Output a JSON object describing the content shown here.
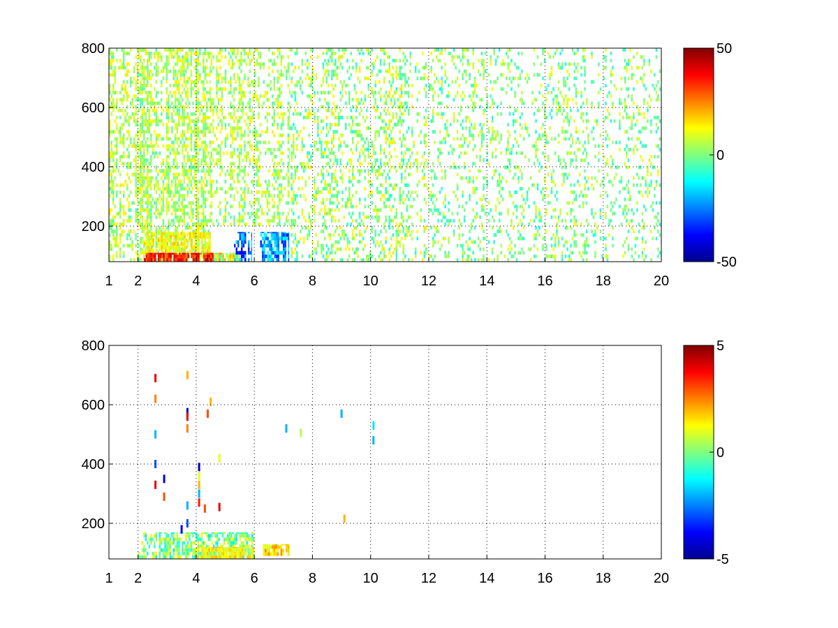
{
  "figure": {
    "background": "#ffffff",
    "axes_color": "#000000",
    "grid_style": "dotted"
  },
  "colormap": {
    "name": "jet",
    "stops": [
      "#00008f",
      "#0000ff",
      "#00ffff",
      "#ffff00",
      "#ff0000",
      "#800000"
    ]
  },
  "chart_data": [
    {
      "type": "heatmap",
      "title": "",
      "xlabel": "",
      "ylabel": "",
      "xlim": [
        1,
        20
      ],
      "ylim": [
        80,
        800
      ],
      "xticks": [
        1,
        2,
        4,
        6,
        8,
        10,
        12,
        14,
        16,
        18,
        20
      ],
      "yticks": [
        200,
        400,
        600,
        800
      ],
      "grid": true,
      "colorbar": {
        "clim": [
          -50,
          50
        ],
        "ticks": [
          50,
          0,
          -50
        ],
        "placement": "right"
      },
      "regions": [
        {
          "x": [
            1.0,
            2.0
          ],
          "y": [
            80,
            800
          ],
          "value_range": [
            -5,
            15
          ],
          "density": 0.35
        },
        {
          "x": [
            2.0,
            4.5
          ],
          "y": [
            80,
            800
          ],
          "value_range": [
            -5,
            15
          ],
          "density": 0.5
        },
        {
          "x": [
            4.5,
            7.2
          ],
          "y": [
            200,
            800
          ],
          "value_range": [
            -5,
            15
          ],
          "density": 0.35
        },
        {
          "x": [
            7.2,
            12.0
          ],
          "y": [
            80,
            800
          ],
          "value_range": [
            -10,
            15
          ],
          "density": 0.25
        },
        {
          "x": [
            12.0,
            20.0
          ],
          "y": [
            80,
            800
          ],
          "value_range": [
            -10,
            12
          ],
          "density": 0.18
        },
        {
          "x": [
            2.2,
            4.5
          ],
          "y": [
            110,
            180
          ],
          "value_range": [
            5,
            20
          ],
          "density": 0.7
        },
        {
          "x": [
            2.2,
            4.6
          ],
          "y": [
            80,
            110
          ],
          "value_range": [
            25,
            45
          ],
          "density": 0.95
        },
        {
          "x": [
            4.6,
            5.5
          ],
          "y": [
            80,
            110
          ],
          "value_range": [
            -10,
            25
          ],
          "density": 0.95
        },
        {
          "x": [
            5.3,
            5.9
          ],
          "y": [
            80,
            180
          ],
          "value_range": [
            -40,
            -15
          ],
          "density": 0.9
        },
        {
          "x": [
            6.2,
            7.2
          ],
          "y": [
            80,
            180
          ],
          "value_range": [
            -35,
            -10
          ],
          "density": 0.85
        }
      ]
    },
    {
      "type": "heatmap",
      "title": "",
      "xlabel": "",
      "ylabel": "",
      "xlim": [
        1,
        20
      ],
      "ylim": [
        80,
        800
      ],
      "xticks": [
        1,
        2,
        4,
        6,
        8,
        10,
        12,
        14,
        16,
        18,
        20
      ],
      "yticks": [
        200,
        400,
        600,
        800
      ],
      "grid": true,
      "colorbar": {
        "clim": [
          -5,
          5
        ],
        "ticks": [
          5,
          0,
          -5
        ],
        "placement": "right"
      },
      "regions": [
        {
          "x": [
            2.0,
            6.0
          ],
          "y": [
            80,
            170
          ],
          "value_range": [
            -1.5,
            1.5
          ],
          "density": 0.55
        },
        {
          "x": [
            4.0,
            6.0
          ],
          "y": [
            80,
            120
          ],
          "value_range": [
            0.5,
            2
          ],
          "density": 0.9
        },
        {
          "x": [
            6.3,
            7.2
          ],
          "y": [
            90,
            130
          ],
          "value_range": [
            0.5,
            2.5
          ],
          "density": 0.9
        }
      ],
      "points": [
        {
          "x": 2.6,
          "y": 690,
          "v": 4
        },
        {
          "x": 2.6,
          "y": 620,
          "v": 2.5
        },
        {
          "x": 2.6,
          "y": 500,
          "v": -2
        },
        {
          "x": 2.6,
          "y": 400,
          "v": -3
        },
        {
          "x": 2.6,
          "y": 330,
          "v": 4
        },
        {
          "x": 2.9,
          "y": 350,
          "v": -4
        },
        {
          "x": 2.9,
          "y": 290,
          "v": 3
        },
        {
          "x": 3.5,
          "y": 180,
          "v": -4
        },
        {
          "x": 3.7,
          "y": 700,
          "v": 2
        },
        {
          "x": 3.7,
          "y": 575,
          "v": -4.5
        },
        {
          "x": 3.7,
          "y": 560,
          "v": 4
        },
        {
          "x": 3.7,
          "y": 520,
          "v": 2.5
        },
        {
          "x": 3.7,
          "y": 260,
          "v": -2
        },
        {
          "x": 3.7,
          "y": 200,
          "v": -3
        },
        {
          "x": 4.1,
          "y": 390,
          "v": -4.5
        },
        {
          "x": 4.1,
          "y": 360,
          "v": 1
        },
        {
          "x": 4.1,
          "y": 330,
          "v": 2
        },
        {
          "x": 4.1,
          "y": 300,
          "v": -2
        },
        {
          "x": 4.1,
          "y": 270,
          "v": 3.5
        },
        {
          "x": 4.3,
          "y": 250,
          "v": 3
        },
        {
          "x": 4.4,
          "y": 570,
          "v": 3
        },
        {
          "x": 4.5,
          "y": 610,
          "v": 2
        },
        {
          "x": 4.8,
          "y": 420,
          "v": 1
        },
        {
          "x": 4.8,
          "y": 255,
          "v": 4
        },
        {
          "x": 7.1,
          "y": 520,
          "v": -2
        },
        {
          "x": 7.6,
          "y": 505,
          "v": 0.5
        },
        {
          "x": 9.0,
          "y": 570,
          "v": -2
        },
        {
          "x": 9.1,
          "y": 215,
          "v": 2
        },
        {
          "x": 10.1,
          "y": 530,
          "v": -1.5
        },
        {
          "x": 10.1,
          "y": 480,
          "v": -2
        }
      ]
    }
  ]
}
